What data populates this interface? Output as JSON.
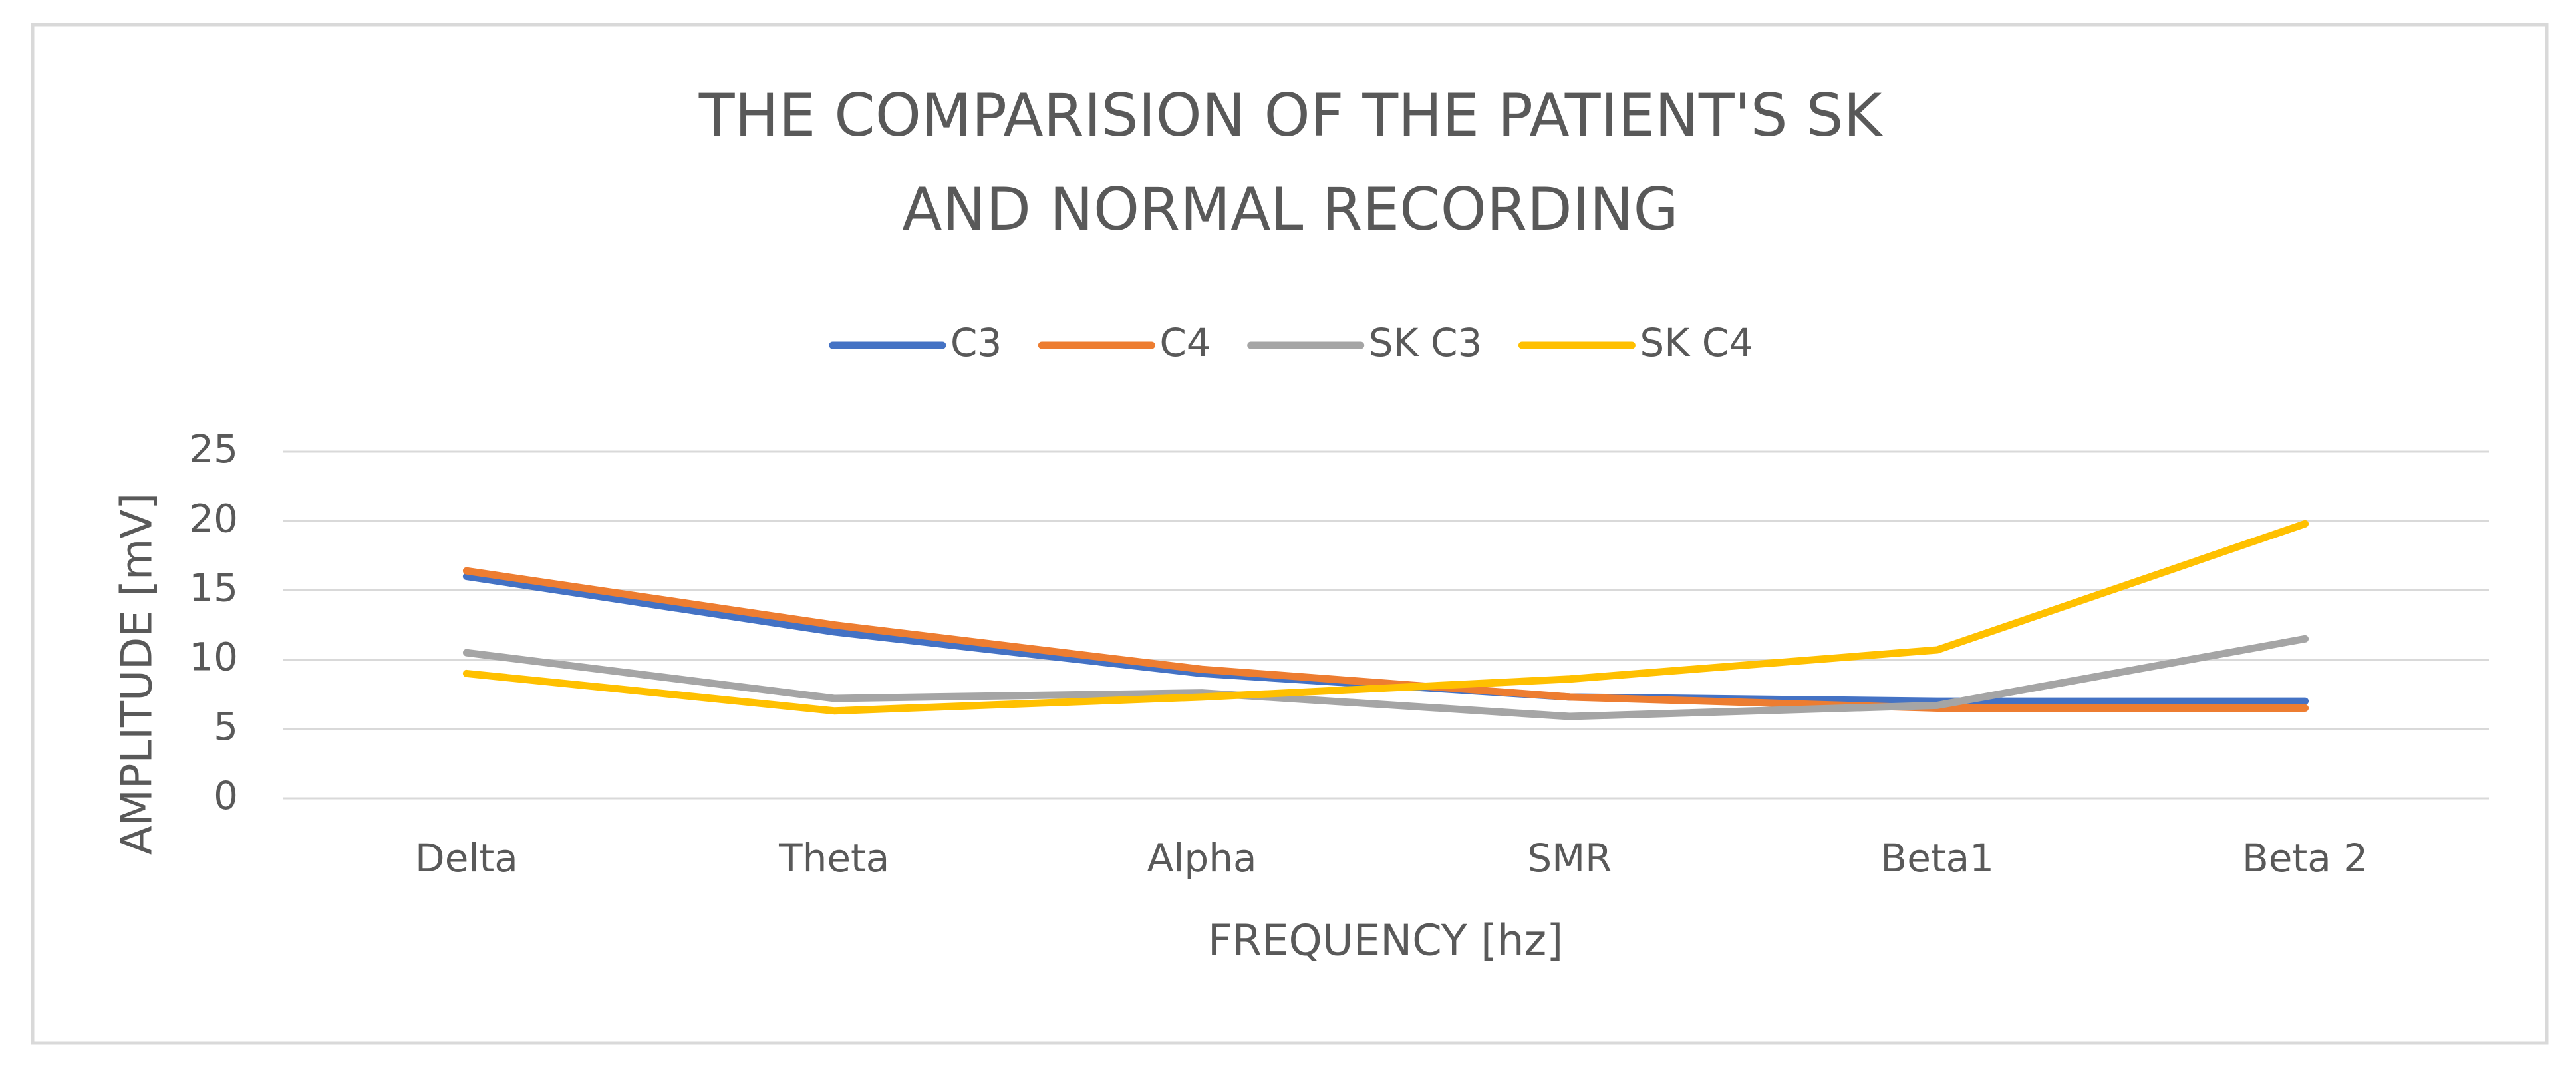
{
  "chart_data": {
    "type": "line",
    "title": [
      "THE COMPARISION OF THE PATIENT'S SK",
      "AND NORMAL RECORDING"
    ],
    "x_label": "FREQUENCY [hz]",
    "y_label": "AMPLITUDE  [mV]",
    "categories": [
      "Delta",
      "Theta",
      "Alpha",
      "SMR",
      "Beta1",
      "Beta 2"
    ],
    "series": [
      {
        "name": "C3",
        "color": "#4472c4",
        "values": [
          16,
          12,
          9,
          7.3,
          7,
          7
        ]
      },
      {
        "name": "C4",
        "color": "#ed7d31",
        "values": [
          16.4,
          12.5,
          9.3,
          7.3,
          6.5,
          6.5
        ]
      },
      {
        "name": "SK C3",
        "color": "#a5a5a5",
        "values": [
          10.5,
          7.2,
          7.6,
          5.9,
          6.7,
          11.5
        ]
      },
      {
        "name": "SK C4",
        "color": "#ffc000",
        "values": [
          9,
          6.3,
          7.3,
          8.6,
          10.7,
          19.8
        ]
      }
    ],
    "ylim": [
      0,
      25
    ],
    "yticks": [
      0,
      5,
      10,
      15,
      20,
      25
    ],
    "grid": true,
    "legend": "top"
  }
}
